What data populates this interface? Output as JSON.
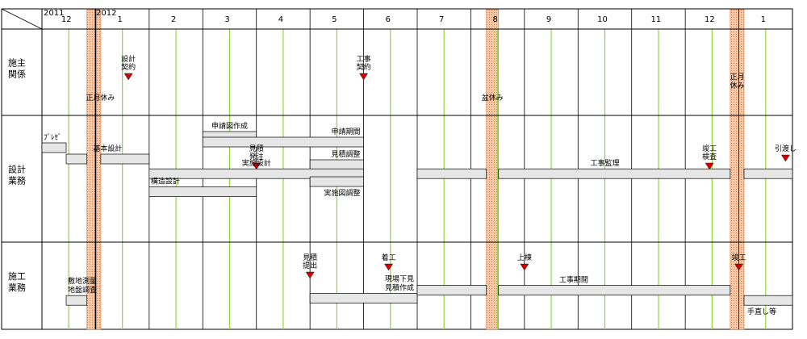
{
  "header": {
    "year_start": "2011",
    "year_next": "2012",
    "months": [
      "12",
      "1",
      "2",
      "3",
      "4",
      "5",
      "6",
      "7",
      "8",
      "9",
      "10",
      "11",
      "12",
      "1"
    ]
  },
  "rows": [
    {
      "id": "client",
      "label_lines": [
        "施主",
        "関係"
      ]
    },
    {
      "id": "design",
      "label_lines": [
        "設計",
        "業務"
      ]
    },
    {
      "id": "construction",
      "label_lines": [
        "施工",
        "業務"
      ]
    }
  ],
  "holidays": [
    {
      "name": "new-year-1",
      "label_lines": [
        "正月休み"
      ],
      "start": "2011-12-27",
      "end": "2012-01-04",
      "label_pos": "left"
    },
    {
      "name": "obon",
      "label_lines": [
        "盆休み"
      ],
      "start": "2012-08-10",
      "end": "2012-08-17",
      "label_pos": "center"
    },
    {
      "name": "new-year-2",
      "label_lines": [
        "正月",
        "休み"
      ],
      "start": "2012-12-27",
      "end": "2013-01-04",
      "label_pos": "center"
    }
  ],
  "milestones": [
    {
      "row": "client",
      "label_lines": [
        "設計",
        "契約"
      ],
      "date": "2012-01-20"
    },
    {
      "row": "client",
      "label_lines": [
        "工事",
        "契約"
      ],
      "date": "2012-06-01"
    },
    {
      "row": "design",
      "label_lines": [
        "見積",
        "発注"
      ],
      "date": "2012-04-01"
    },
    {
      "row": "design",
      "label_lines": [
        "竣工",
        "検査"
      ],
      "date": "2012-12-15"
    },
    {
      "row": "design",
      "label_lines": [
        "引渡し"
      ],
      "date": "2013-01-28"
    },
    {
      "row": "construction",
      "label_lines": [
        "見積",
        "提出"
      ],
      "date": "2012-05-01"
    },
    {
      "row": "construction",
      "label_lines": [
        "着工"
      ],
      "date": "2012-06-15"
    },
    {
      "row": "construction",
      "label_lines": [
        "上棟"
      ],
      "date": "2012-09-01"
    },
    {
      "row": "construction",
      "label_lines": [
        "竣工"
      ],
      "date": "2013-01-01"
    }
  ],
  "tasks": [
    {
      "row": "design",
      "label": "ﾌﾟﾚｾﾞ",
      "label_pos": "above-left",
      "segments": [
        [
          "2011-12-01",
          "2011-12-15"
        ]
      ],
      "lane": 0
    },
    {
      "row": "design",
      "label": "基本設計",
      "label_pos": "above-center",
      "segments": [
        [
          "2011-12-15",
          "2011-12-27"
        ],
        [
          "2012-01-04",
          "2012-02-01"
        ]
      ],
      "lane": 1
    },
    {
      "row": "design",
      "label": "申請図作成",
      "label_pos": "above-center",
      "segments": [
        [
          "2012-03-01",
          "2012-04-01"
        ]
      ],
      "lane": -1
    },
    {
      "row": "design",
      "label": "申請期間",
      "label_pos": "above-right",
      "segments": [
        [
          "2012-03-01",
          "2012-06-01"
        ]
      ],
      "lane": -0.5
    },
    {
      "row": "design",
      "label": "見積調整",
      "label_pos": "above-right",
      "segments": [
        [
          "2012-05-01",
          "2012-06-01"
        ]
      ],
      "lane": 1.5
    },
    {
      "row": "design",
      "label": "実施設計",
      "label_pos": "above-center",
      "segments": [
        [
          "2012-02-01",
          "2012-06-01"
        ]
      ],
      "lane": 2.3
    },
    {
      "row": "design",
      "label": "工事監理",
      "label_pos": "above-center",
      "segments": [
        [
          "2012-07-01",
          "2012-08-10"
        ],
        [
          "2012-08-17",
          "2012-12-27"
        ],
        [
          "2013-01-04",
          "2013-02-01"
        ]
      ],
      "lane": 2.3
    },
    {
      "row": "design",
      "label": "実施図調整",
      "label_pos": "below-right",
      "segments": [
        [
          "2012-05-01",
          "2012-06-01"
        ]
      ],
      "lane": 3.0
    },
    {
      "row": "design",
      "label": "構造設計",
      "label_pos": "above-left",
      "segments": [
        [
          "2012-02-01",
          "2012-04-01"
        ]
      ],
      "lane": 3.9
    },
    {
      "row": "construction",
      "label_lines": [
        "敷地測量",
        "地盤調査"
      ],
      "label_pos": "above-left",
      "segments": [
        [
          "2011-12-15",
          "2011-12-27"
        ]
      ],
      "lane": 2.3
    },
    {
      "row": "construction",
      "label_lines": [
        "現場下見",
        "見積作成"
      ],
      "label_pos": "above-right",
      "segments": [
        [
          "2012-05-01",
          "2012-07-01"
        ]
      ],
      "lane": 2.1
    },
    {
      "row": "construction",
      "label": "工事期間",
      "label_pos": "above-center",
      "segments": [
        [
          "2012-07-01",
          "2012-08-10"
        ],
        [
          "2012-08-17",
          "2012-12-27"
        ]
      ],
      "lane": 1.4
    },
    {
      "row": "construction",
      "label": "手直し等",
      "label_pos": "below-left",
      "segments": [
        [
          "2013-01-04",
          "2013-02-01"
        ]
      ],
      "lane": 2.3
    }
  ],
  "colors": {
    "grid": "#000000",
    "month_line": "#8fd63a",
    "holiday_fill": "#f7c9a8",
    "holiday_stroke": "#e07a3a",
    "bar_fill": "#e6e6e6",
    "bar_stroke": "#000000",
    "milestone": "#d40000"
  }
}
